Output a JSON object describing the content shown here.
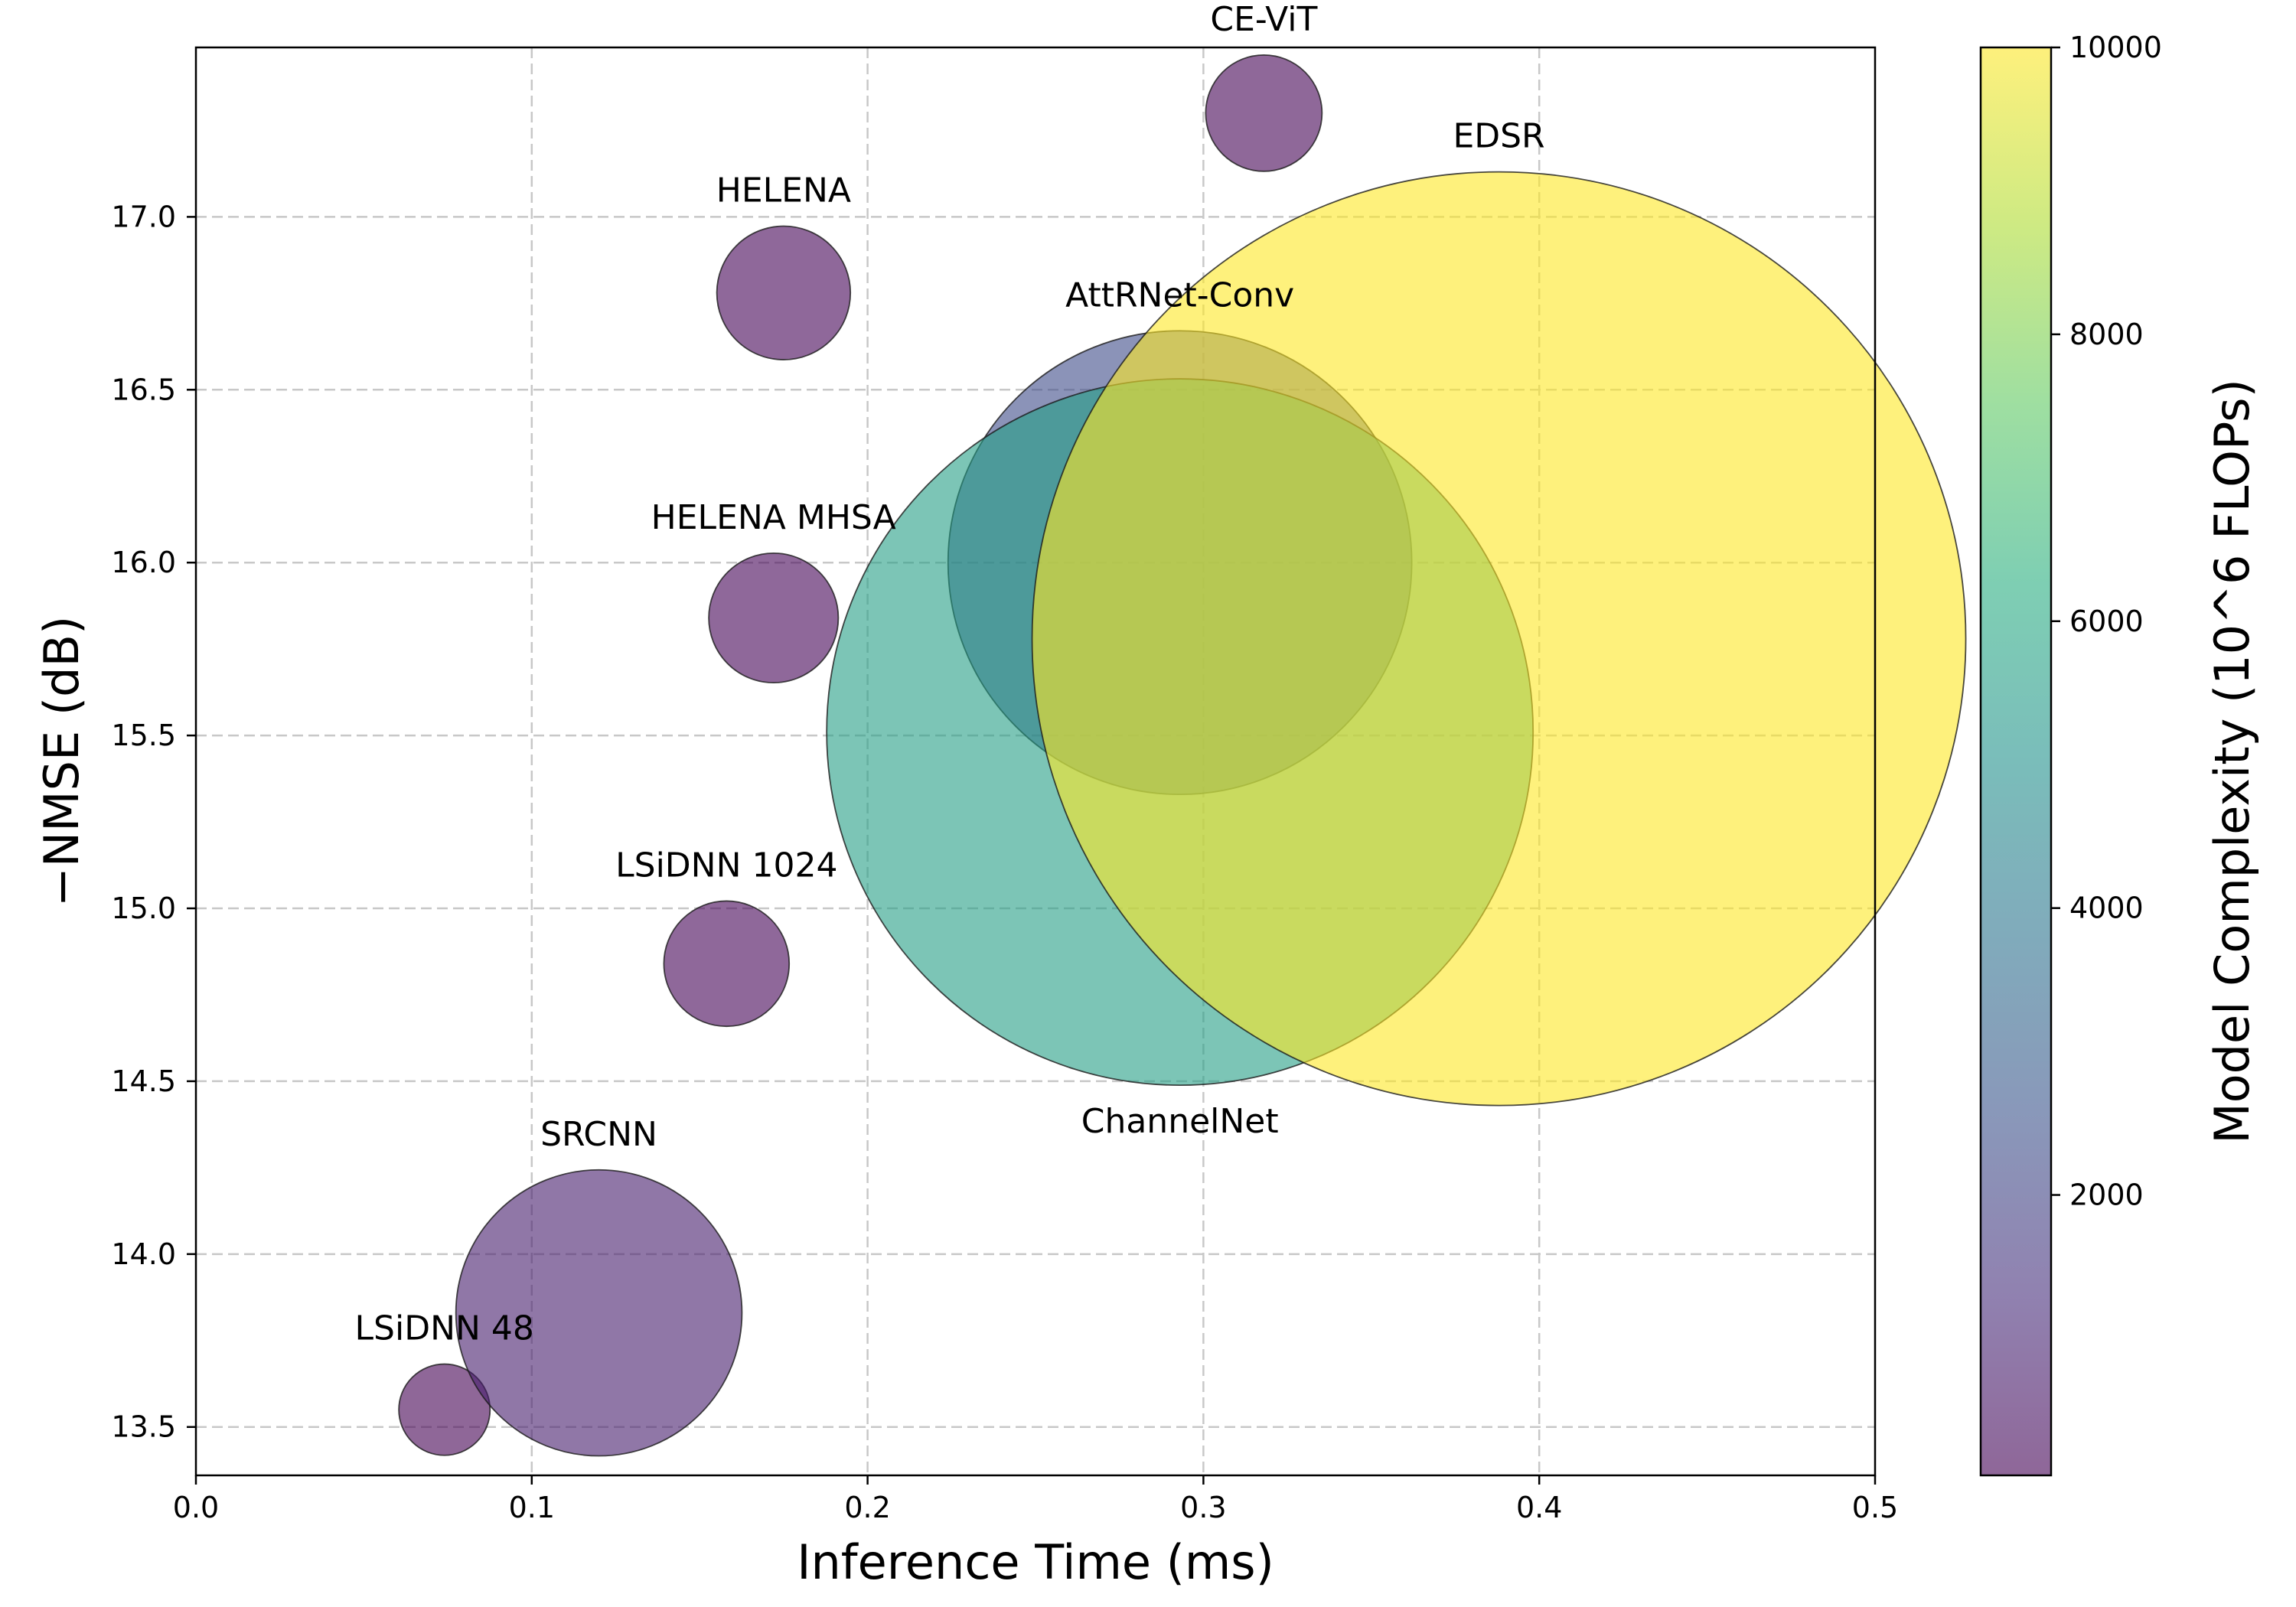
{
  "chart_data": {
    "type": "scatter",
    "xlabel": "Inference Time (ms)",
    "ylabel": "−NMSE (dB)",
    "colorbar_label": "Model Complexity (10^6 FLOPs)",
    "xlim": [
      0.0,
      0.5
    ],
    "ylim": [
      13.36,
      17.49
    ],
    "x_ticks": [
      0.0,
      0.1,
      0.2,
      0.3,
      0.4,
      0.5
    ],
    "x_tick_labels": [
      "0.0",
      "0.1",
      "0.2",
      "0.3",
      "0.4",
      "0.5"
    ],
    "y_ticks": [
      13.5,
      14.0,
      14.5,
      15.0,
      15.5,
      16.0,
      16.5,
      17.0
    ],
    "y_tick_labels": [
      "13.5",
      "14.0",
      "14.5",
      "15.0",
      "15.5",
      "16.0",
      "16.5",
      "17.0"
    ],
    "colorbar_range": [
      45,
      10000
    ],
    "colorbar_ticks": [
      2000,
      4000,
      6000,
      8000,
      10000
    ],
    "colorbar_tick_labels": [
      "2000",
      "4000",
      "6000",
      "8000",
      "10000"
    ],
    "colormap": "viridis",
    "alpha": 0.6,
    "grid": true,
    "size_encodes": "Model Complexity (10^6 FLOPs)",
    "points": [
      {
        "label": "LSiDNN 48",
        "x": 0.074,
        "y": 13.55,
        "complexity": 45,
        "label_position": "above"
      },
      {
        "label": "SRCNN",
        "x": 0.12,
        "y": 13.83,
        "complexity": 800,
        "label_position": "above"
      },
      {
        "label": "LSiDNN 1024",
        "x": 0.158,
        "y": 14.84,
        "complexity": 110,
        "label_position": "above"
      },
      {
        "label": "HELENA MHSA",
        "x": 0.172,
        "y": 15.84,
        "complexity": 120,
        "label_position": "above"
      },
      {
        "label": "HELENA",
        "x": 0.175,
        "y": 16.78,
        "complexity": 130,
        "label_position": "above"
      },
      {
        "label": "CE-ViT",
        "x": 0.318,
        "y": 17.3,
        "complexity": 90,
        "label_position": "above"
      },
      {
        "label": "AttRNet-Conv",
        "x": 0.293,
        "y": 16.0,
        "complexity": 2300,
        "label_position": "above"
      },
      {
        "label": "ChannelNet",
        "x": 0.293,
        "y": 15.51,
        "complexity": 5600,
        "label_position": "below"
      },
      {
        "label": "EDSR",
        "x": 0.388,
        "y": 15.78,
        "complexity": 10000,
        "label_position": "above"
      }
    ]
  }
}
